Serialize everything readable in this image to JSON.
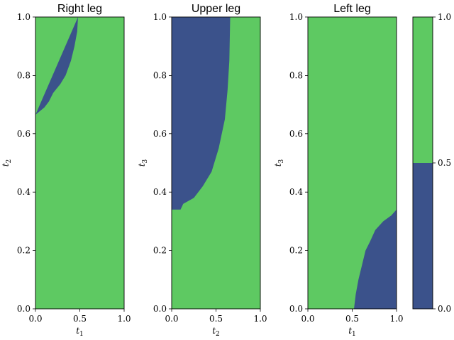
{
  "chart_data": {
    "type": "heatmap",
    "colors": {
      "low": "#3b528b",
      "high": "#5ec962"
    },
    "panels": [
      {
        "title": "Right leg",
        "xlabel": {
          "var": "t",
          "sub": "1"
        },
        "ylabel": {
          "var": "t",
          "sub": "2"
        },
        "xlim": [
          0,
          1
        ],
        "ylim": [
          0,
          1
        ],
        "xticks": [
          "0.0",
          "0.5",
          "1.0"
        ],
        "yticks": [
          "0.0",
          "0.2",
          "0.4",
          "0.6",
          "0.8",
          "1.0"
        ],
        "low_region": {
          "description_boundary": "x as function of y, low region is left of boundary",
          "boundary": [
            {
              "y": 0.665,
              "x": 0.0
            },
            {
              "y": 0.69,
              "x": 0.1
            },
            {
              "y": 0.71,
              "x": 0.15
            },
            {
              "y": 0.74,
              "x": 0.2
            },
            {
              "y": 0.77,
              "x": 0.28
            },
            {
              "y": 0.8,
              "x": 0.34
            },
            {
              "y": 0.85,
              "x": 0.4
            },
            {
              "y": 0.9,
              "x": 0.44
            },
            {
              "y": 0.95,
              "x": 0.47
            },
            {
              "y": 1.0,
              "x": 0.48
            }
          ]
        }
      },
      {
        "title": "Upper leg",
        "xlabel": {
          "var": "t",
          "sub": "2"
        },
        "ylabel": {
          "var": "t",
          "sub": "3"
        },
        "xlim": [
          0,
          1
        ],
        "ylim": [
          0,
          1
        ],
        "xticks": [
          "0.0",
          "0.5",
          "1.0"
        ],
        "yticks": [
          "0.0",
          "0.2",
          "0.4",
          "0.6",
          "0.8",
          "1.0"
        ],
        "low_region": {
          "boundary": [
            {
              "y": 0.34,
              "x": 0.0
            },
            {
              "y": 0.34,
              "x": 0.1
            },
            {
              "y": 0.36,
              "x": 0.13
            },
            {
              "y": 0.38,
              "x": 0.25
            },
            {
              "y": 0.42,
              "x": 0.35
            },
            {
              "y": 0.47,
              "x": 0.45
            },
            {
              "y": 0.55,
              "x": 0.53
            },
            {
              "y": 0.65,
              "x": 0.6
            },
            {
              "y": 0.75,
              "x": 0.63
            },
            {
              "y": 0.85,
              "x": 0.65
            },
            {
              "y": 1.0,
              "x": 0.66
            }
          ]
        }
      },
      {
        "title": "Left leg",
        "xlabel": {
          "var": "t",
          "sub": "1"
        },
        "ylabel": {
          "var": "t",
          "sub": "3"
        },
        "xlim": [
          0,
          1
        ],
        "ylim": [
          0,
          1
        ],
        "xticks": [
          "0.0",
          "0.5",
          "1.0"
        ],
        "yticks": [
          "0.0",
          "0.2",
          "0.4",
          "0.6",
          "0.8",
          "1.0"
        ],
        "low_region": {
          "description_boundary": "low region is right of boundary, below curve",
          "boundary": [
            {
              "y": 0.0,
              "x": 0.52
            },
            {
              "y": 0.05,
              "x": 0.54
            },
            {
              "y": 0.1,
              "x": 0.57
            },
            {
              "y": 0.15,
              "x": 0.61
            },
            {
              "y": 0.2,
              "x": 0.65
            },
            {
              "y": 0.23,
              "x": 0.7
            },
            {
              "y": 0.27,
              "x": 0.76
            },
            {
              "y": 0.3,
              "x": 0.85
            },
            {
              "y": 0.32,
              "x": 0.94
            },
            {
              "y": 0.34,
              "x": 1.0
            }
          ]
        }
      }
    ],
    "colorbar": {
      "ticks": [
        "0.0",
        "0.5",
        "1.0"
      ],
      "levels": [
        0.0,
        0.5,
        1.0
      ]
    }
  }
}
